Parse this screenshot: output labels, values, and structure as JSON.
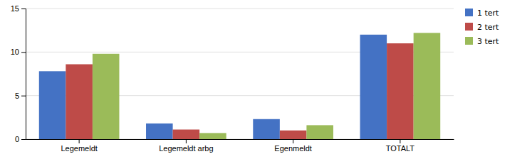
{
  "chart_data": {
    "type": "bar",
    "categories": [
      "Legemeldt",
      "Legemeldt arbg",
      "Egenmeldt",
      "TOTALT"
    ],
    "series": [
      {
        "name": "1 tert",
        "color": "#4472C4",
        "values": [
          7.8,
          1.8,
          2.3,
          12.0
        ]
      },
      {
        "name": "2 tert",
        "color": "#BE4B48",
        "values": [
          8.6,
          1.1,
          1.0,
          11.0
        ]
      },
      {
        "name": "3 tert",
        "color": "#9BBB59",
        "values": [
          9.8,
          0.7,
          1.6,
          12.2
        ]
      }
    ],
    "ylim": [
      0,
      15
    ],
    "yticks": [
      0,
      5,
      10,
      15
    ],
    "grid": true,
    "legend": "right"
  }
}
